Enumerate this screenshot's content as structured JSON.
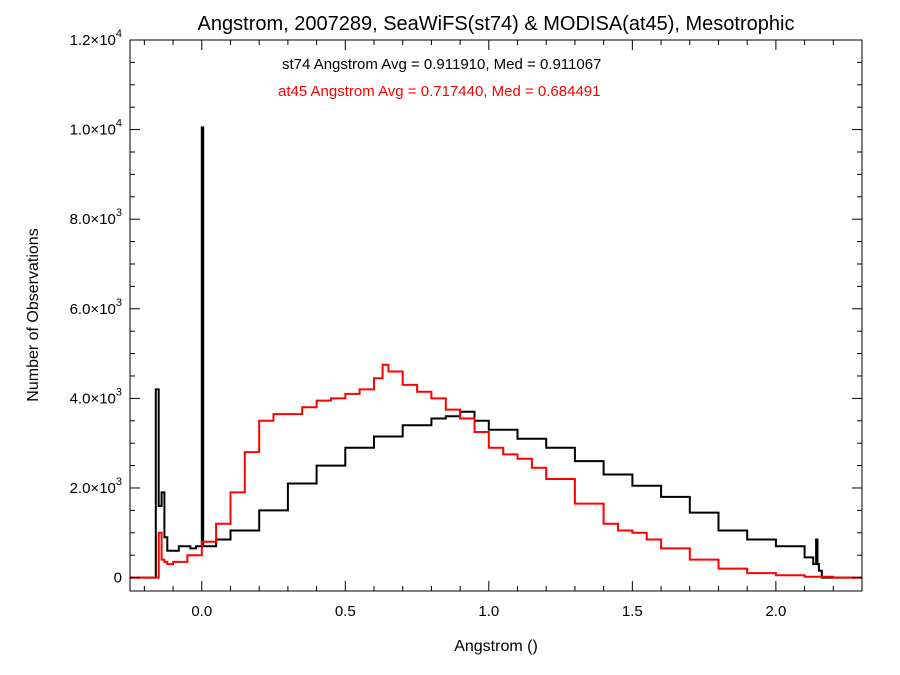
{
  "chart_data": {
    "type": "line",
    "title": "Angstrom, 2007289, SeaWiFS(st74) & MODISA(at45), Mesotrophic",
    "xlabel": "Angstrom ()",
    "ylabel": "Number of Observations",
    "xlim": [
      -0.25,
      2.3
    ],
    "ylim": [
      -300,
      12000
    ],
    "x_ticks": [
      {
        "value": 0.0,
        "label": "0.0"
      },
      {
        "value": 0.5,
        "label": "0.5"
      },
      {
        "value": 1.0,
        "label": "1.0"
      },
      {
        "value": 1.5,
        "label": "1.5"
      },
      {
        "value": 2.0,
        "label": "2.0"
      }
    ],
    "y_ticks": [
      {
        "value": 0,
        "mant": "0",
        "exp": ""
      },
      {
        "value": 2000,
        "mant": "2.0×10",
        "exp": "3"
      },
      {
        "value": 4000,
        "mant": "4.0×10",
        "exp": "3"
      },
      {
        "value": 6000,
        "mant": "6.0×10",
        "exp": "3"
      },
      {
        "value": 8000,
        "mant": "8.0×10",
        "exp": "3"
      },
      {
        "value": 10000,
        "mant": "1.0×10",
        "exp": "4"
      },
      {
        "value": 12000,
        "mant": "1.2×10",
        "exp": "4"
      }
    ],
    "annotations": [
      {
        "text": "st74 Angstrom Avg = 0.911910, Med = 0.911067",
        "color": "#000000"
      },
      {
        "text": "at45 Angstrom Avg = 0.717440, Med = 0.684491",
        "color": "#ff0000"
      }
    ],
    "series": [
      {
        "color": "#000000",
        "x": [
          -0.25,
          -0.165,
          -0.16,
          -0.15,
          -0.14,
          -0.13,
          -0.12,
          -0.1,
          -0.08,
          -0.06,
          -0.04,
          -0.02,
          -0.005,
          0.0,
          0.005,
          0.05,
          0.1,
          0.2,
          0.3,
          0.4,
          0.5,
          0.6,
          0.7,
          0.8,
          0.85,
          0.9,
          0.95,
          1.0,
          1.1,
          1.2,
          1.3,
          1.4,
          1.5,
          1.6,
          1.7,
          1.8,
          1.9,
          2.0,
          2.1,
          2.13,
          2.14,
          2.145,
          2.15,
          2.16,
          2.2,
          2.3
        ],
        "y": [
          0,
          0,
          4200,
          1600,
          1900,
          900,
          600,
          600,
          700,
          700,
          650,
          700,
          700,
          10050,
          700,
          850,
          1050,
          1500,
          2100,
          2500,
          2900,
          3150,
          3400,
          3550,
          3600,
          3700,
          3500,
          3300,
          3100,
          2900,
          2600,
          2300,
          2050,
          1800,
          1450,
          1050,
          850,
          700,
          450,
          300,
          850,
          300,
          150,
          0,
          0,
          0
        ]
      },
      {
        "color": "#ff0000",
        "x": [
          -0.25,
          -0.16,
          -0.15,
          -0.14,
          -0.13,
          -0.12,
          -0.1,
          -0.05,
          0.0,
          0.05,
          0.1,
          0.15,
          0.2,
          0.25,
          0.3,
          0.35,
          0.4,
          0.45,
          0.5,
          0.55,
          0.6,
          0.63,
          0.65,
          0.7,
          0.75,
          0.8,
          0.85,
          0.9,
          0.95,
          1.0,
          1.05,
          1.1,
          1.15,
          1.2,
          1.3,
          1.4,
          1.45,
          1.5,
          1.55,
          1.6,
          1.7,
          1.8,
          1.9,
          2.0,
          2.1,
          2.2,
          2.3
        ],
        "y": [
          0,
          0,
          1000,
          400,
          350,
          300,
          350,
          500,
          800,
          1200,
          1900,
          2800,
          3500,
          3650,
          3650,
          3800,
          3950,
          4000,
          4100,
          4200,
          4450,
          4750,
          4600,
          4300,
          4150,
          4000,
          3750,
          3550,
          3250,
          2900,
          2750,
          2650,
          2450,
          2200,
          1650,
          1200,
          1050,
          1000,
          850,
          650,
          400,
          200,
          100,
          50,
          20,
          0,
          0
        ]
      }
    ]
  }
}
